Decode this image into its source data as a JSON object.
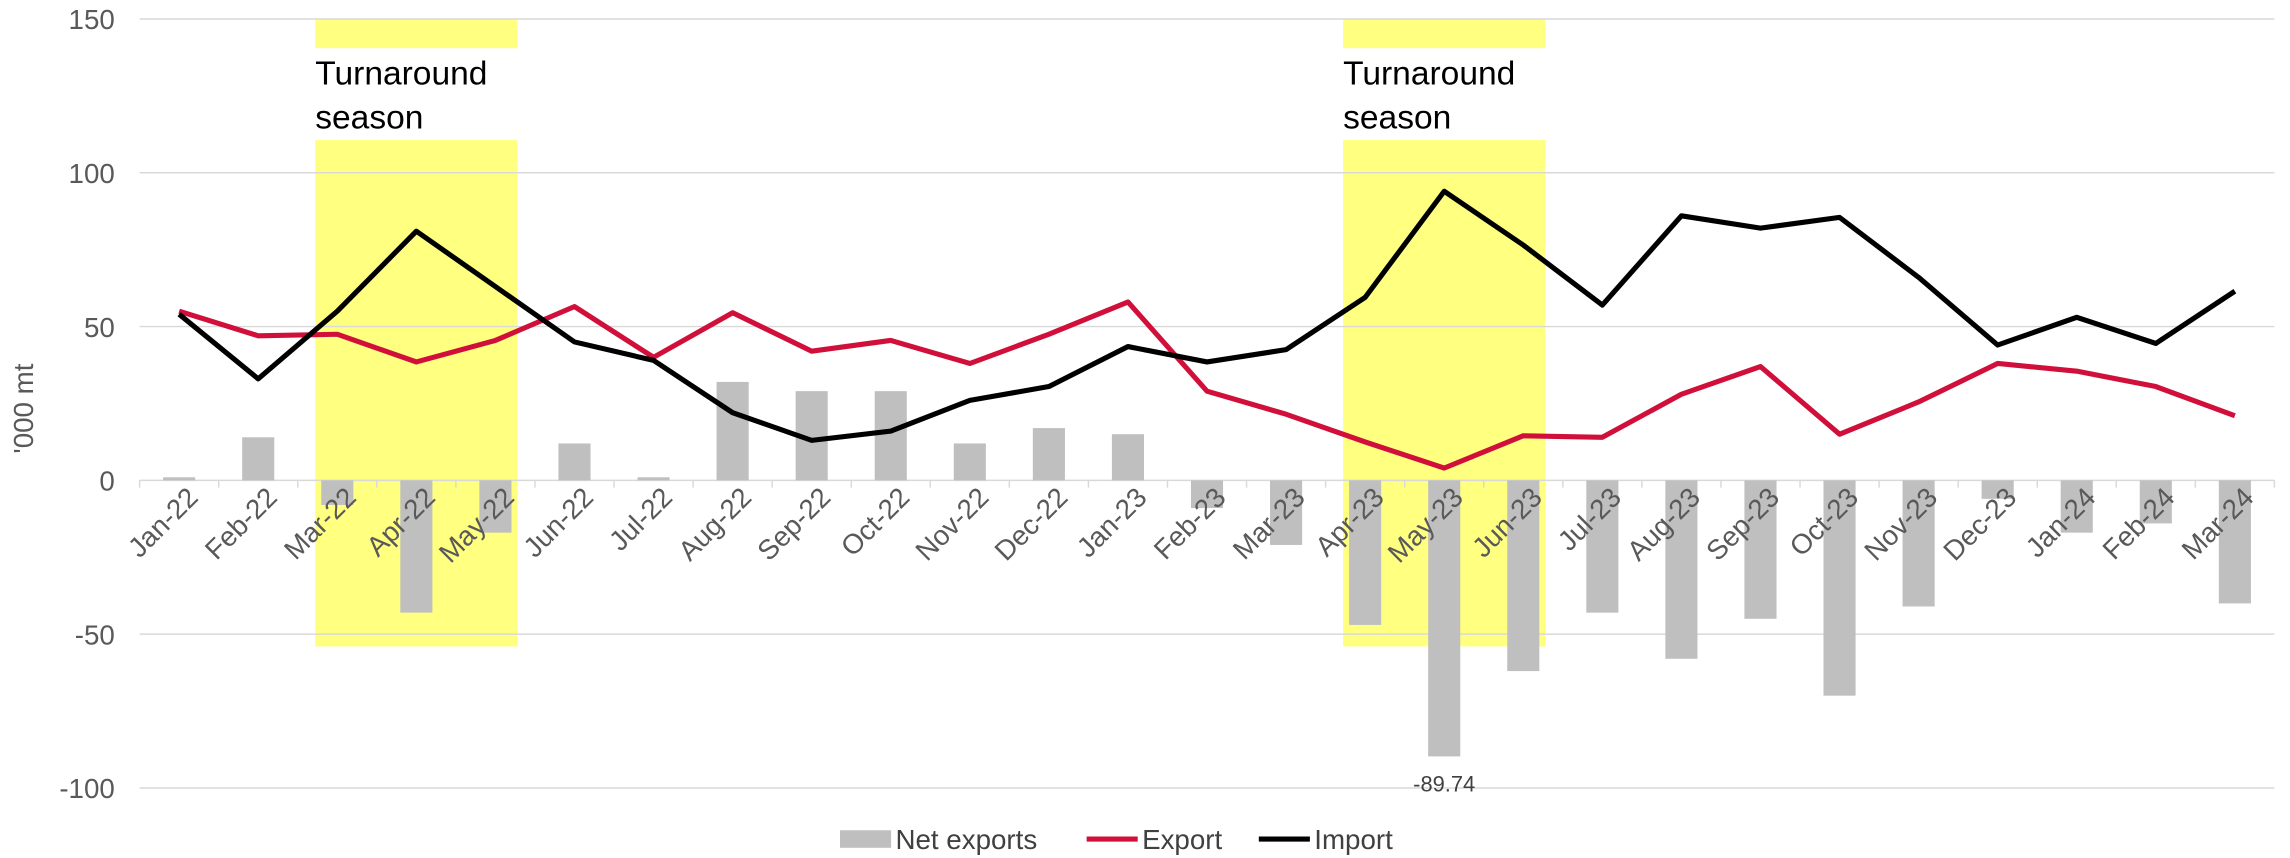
{
  "chart_data": {
    "type": "bar-line",
    "y_label": "'000 mt",
    "categories": [
      "Jan-22",
      "Feb-22",
      "Mar-22",
      "Apr-22",
      "May-22",
      "Jun-22",
      "Jul-22",
      "Aug-22",
      "Sep-22",
      "Oct-22",
      "Nov-22",
      "Dec-22",
      "Jan-23",
      "Feb-23",
      "Mar-23",
      "Apr-23",
      "May-23",
      "Jun-23",
      "Jul-23",
      "Aug-23",
      "Sep-23",
      "Oct-23",
      "Nov-23",
      "Dec-23",
      "Jan-24",
      "Feb-24",
      "Mar-24"
    ],
    "series": [
      {
        "name": "Net exports",
        "type": "bar",
        "color": "#bfbfbf",
        "values": [
          1,
          14,
          -8,
          -43,
          -17,
          12,
          1,
          32,
          29,
          29,
          12,
          17,
          15,
          -9,
          -21,
          -47,
          -89.74,
          -62,
          -43,
          -58,
          -45,
          -70,
          -41,
          -6,
          -17,
          -14,
          -40
        ],
        "value_labels": [
          null,
          null,
          null,
          null,
          null,
          null,
          null,
          null,
          null,
          null,
          null,
          null,
          null,
          null,
          null,
          null,
          "-89.74",
          null,
          null,
          null,
          null,
          null,
          null,
          null,
          null,
          null,
          null
        ]
      },
      {
        "name": "Export",
        "type": "line",
        "color": "#d0103a",
        "values": [
          55,
          47,
          47.5,
          38.5,
          45.5,
          56.5,
          40,
          54.5,
          42,
          45.5,
          38,
          47.5,
          58,
          29,
          21.5,
          12.5,
          4,
          14.5,
          14,
          28,
          37,
          15,
          25.5,
          38,
          35.5,
          30.5,
          21
        ]
      },
      {
        "name": "Import",
        "type": "line",
        "color": "#000000",
        "values": [
          54,
          33,
          55,
          81,
          63,
          45,
          39,
          22,
          13,
          16,
          26,
          30.5,
          43.5,
          38.5,
          42.5,
          59.5,
          94,
          76.5,
          57,
          86,
          82,
          85.5,
          66,
          44,
          53,
          44.5,
          61.5
        ]
      }
    ],
    "annotations": [
      {
        "text": "Turnaround season",
        "start": "Mar-22",
        "end": "May-22"
      },
      {
        "text": "Turnaround season",
        "start": "Apr-23",
        "end": "Jun-23"
      }
    ],
    "highlight_color": "#ffff80",
    "ylim": [
      -100,
      150
    ],
    "yticks": [
      -100,
      -50,
      0,
      50,
      100,
      150
    ],
    "grid": true,
    "legend": "bottom"
  }
}
